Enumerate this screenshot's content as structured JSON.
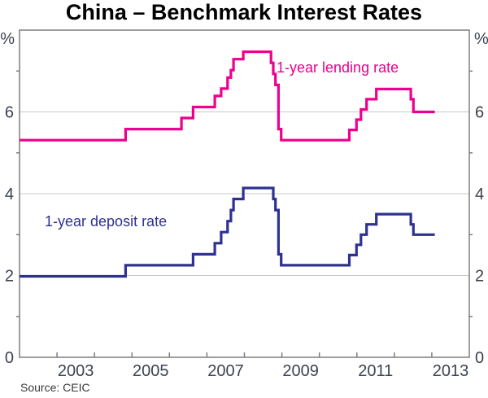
{
  "source_note": "Source: CEIC",
  "chart_data": {
    "type": "line",
    "subtype": "step",
    "title": "China – Benchmark Interest Rates",
    "unit": "%",
    "grid": true,
    "x_axis": {
      "min": 2002,
      "max": 2014,
      "tick_years": [
        2003,
        2004,
        2005,
        2006,
        2007,
        2008,
        2009,
        2010,
        2011,
        2012,
        2013
      ],
      "label_years": [
        "2003",
        "2005",
        "2007",
        "2009",
        "2011",
        "2013"
      ]
    },
    "y_axis": {
      "min": 0,
      "max": 8,
      "unit": "%",
      "labeled_ticks": [
        0,
        2,
        4,
        6
      ],
      "minor_ticks": [
        1,
        3,
        5,
        7
      ],
      "gridlines": [
        2,
        4,
        6
      ]
    },
    "data_end": 2013.08,
    "series": [
      {
        "name": "1-year lending rate",
        "color": "#EC008C",
        "points": [
          [
            2002.0,
            5.31
          ],
          [
            2004.83,
            5.58
          ],
          [
            2006.32,
            5.85
          ],
          [
            2006.63,
            6.12
          ],
          [
            2007.21,
            6.39
          ],
          [
            2007.38,
            6.57
          ],
          [
            2007.55,
            6.84
          ],
          [
            2007.64,
            7.02
          ],
          [
            2007.71,
            7.29
          ],
          [
            2007.97,
            7.47
          ],
          [
            2008.71,
            7.2
          ],
          [
            2008.77,
            6.93
          ],
          [
            2008.83,
            6.66
          ],
          [
            2008.91,
            5.58
          ],
          [
            2008.98,
            5.31
          ],
          [
            2010.8,
            5.56
          ],
          [
            2010.99,
            5.81
          ],
          [
            2011.11,
            6.06
          ],
          [
            2011.26,
            6.31
          ],
          [
            2011.52,
            6.56
          ],
          [
            2012.44,
            6.31
          ],
          [
            2012.51,
            6.0
          ]
        ]
      },
      {
        "name": "1-year deposit rate",
        "color": "#2E3192",
        "points": [
          [
            2002.0,
            1.98
          ],
          [
            2004.83,
            2.25
          ],
          [
            2006.63,
            2.52
          ],
          [
            2007.21,
            2.79
          ],
          [
            2007.38,
            3.06
          ],
          [
            2007.55,
            3.33
          ],
          [
            2007.64,
            3.6
          ],
          [
            2007.71,
            3.87
          ],
          [
            2007.97,
            4.14
          ],
          [
            2008.77,
            3.87
          ],
          [
            2008.83,
            3.6
          ],
          [
            2008.91,
            2.52
          ],
          [
            2008.98,
            2.25
          ],
          [
            2010.8,
            2.5
          ],
          [
            2010.99,
            2.75
          ],
          [
            2011.11,
            3.0
          ],
          [
            2011.26,
            3.25
          ],
          [
            2011.52,
            3.5
          ],
          [
            2012.44,
            3.25
          ],
          [
            2012.51,
            3.0
          ]
        ]
      }
    ]
  }
}
